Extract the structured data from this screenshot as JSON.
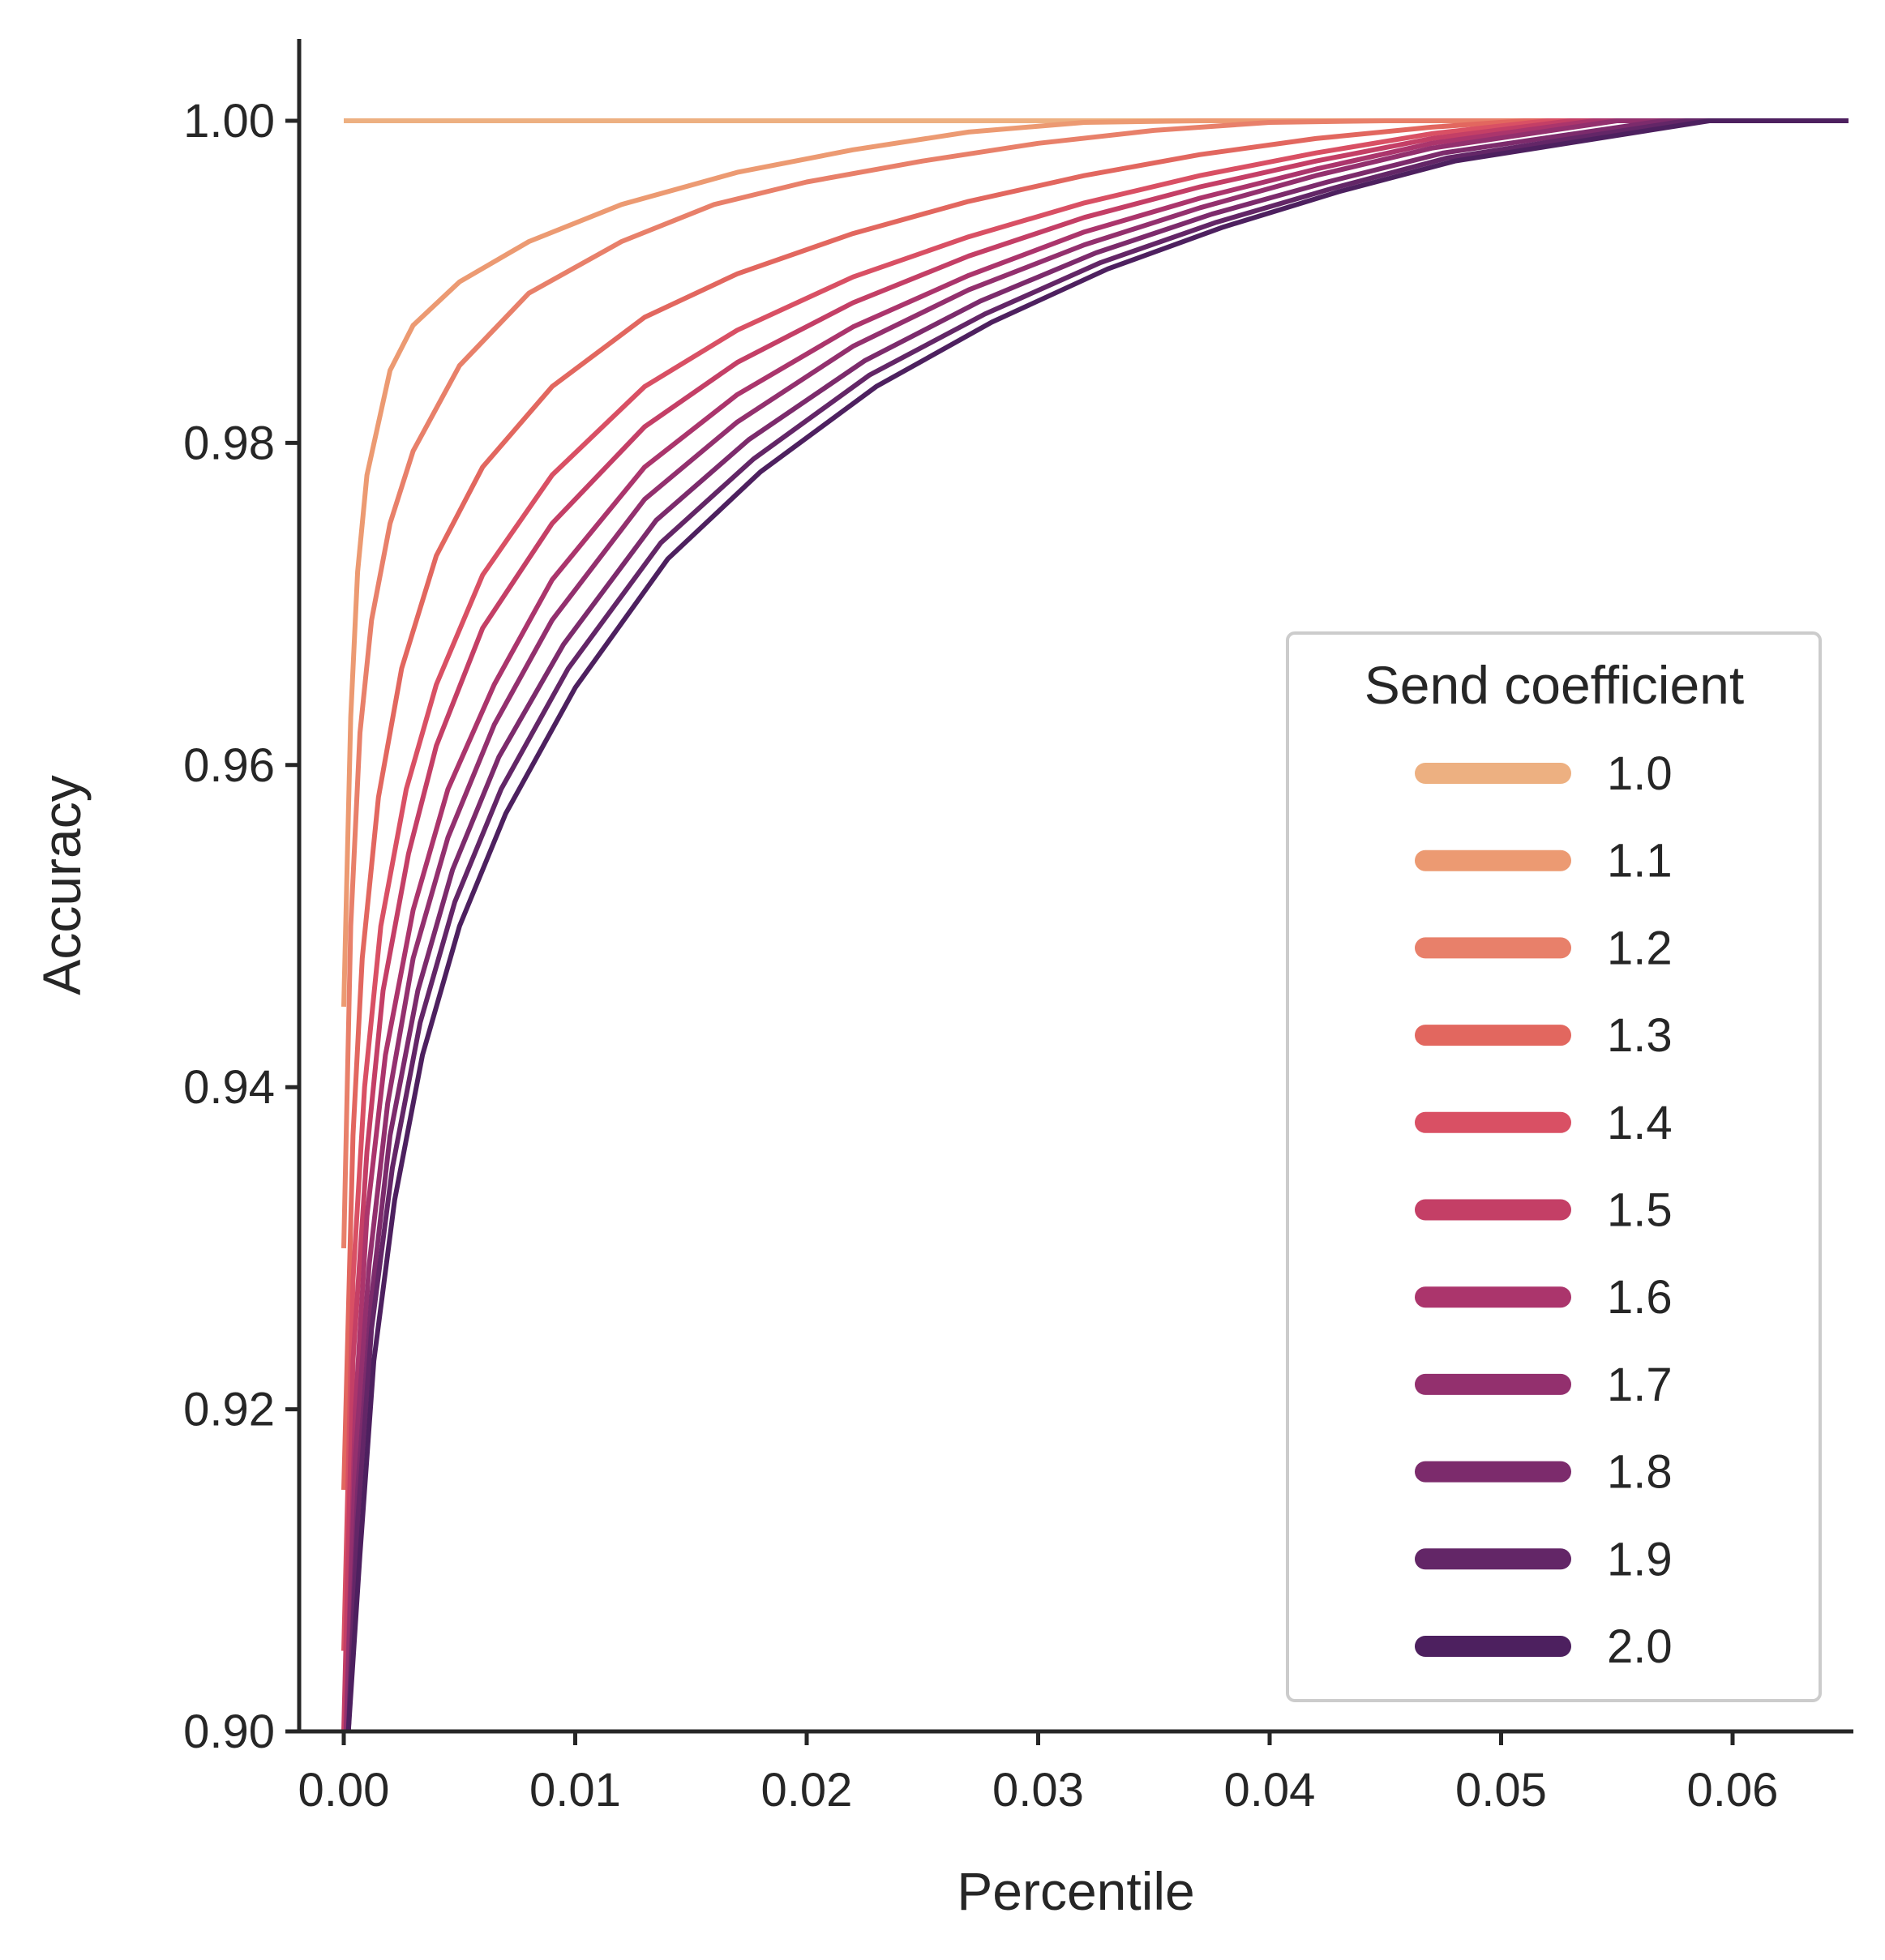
{
  "chart_data": {
    "type": "line",
    "xlabel": "Percentile",
    "ylabel": "Accuracy",
    "xlim": [
      -0.0019,
      0.065
    ],
    "ylim": [
      0.9,
      1.005
    ],
    "x_ticks": [
      "0.00",
      "0.01",
      "0.02",
      "0.03",
      "0.04",
      "0.05",
      "0.06"
    ],
    "y_ticks": [
      "0.90",
      "0.92",
      "0.94",
      "0.96",
      "0.98",
      "1.00"
    ],
    "grid": false,
    "legend": {
      "title": "Send coefficient",
      "placement": "lower-right"
    },
    "series": [
      {
        "name": "1.0",
        "color": "#edb081",
        "x": [
          0,
          0.065
        ],
        "y": [
          1.0,
          1.0
        ]
      },
      {
        "name": "1.1",
        "color": "#ec9a72",
        "x": [
          0,
          0.0003,
          0.0006,
          0.001,
          0.002,
          0.003,
          0.005,
          0.008,
          0.012,
          0.017,
          0.022,
          0.027,
          0.032,
          0.037
        ],
        "y": [
          0.945,
          0.963,
          0.972,
          0.978,
          0.9845,
          0.9873,
          0.99,
          0.9925,
          0.9948,
          0.9968,
          0.9982,
          0.9993,
          0.9999,
          1.0
        ]
      },
      {
        "name": "1.2",
        "color": "#e8806a",
        "x": [
          0,
          0.0003,
          0.0007,
          0.0012,
          0.002,
          0.003,
          0.005,
          0.008,
          0.012,
          0.016,
          0.02,
          0.025,
          0.03,
          0.035,
          0.04,
          0.045
        ],
        "y": [
          0.93,
          0.95,
          0.962,
          0.969,
          0.975,
          0.9795,
          0.9848,
          0.9893,
          0.9925,
          0.9948,
          0.9962,
          0.9975,
          0.9986,
          0.9994,
          0.9999,
          1.0
        ]
      },
      {
        "name": "1.3",
        "color": "#e2675f",
        "x": [
          0,
          0.0004,
          0.0008,
          0.0015,
          0.0025,
          0.004,
          0.006,
          0.009,
          0.013,
          0.017,
          0.022,
          0.027,
          0.032,
          0.037,
          0.042,
          0.047,
          0.051
        ],
        "y": [
          0.915,
          0.937,
          0.948,
          0.958,
          0.966,
          0.973,
          0.9785,
          0.9835,
          0.9878,
          0.9905,
          0.993,
          0.995,
          0.9966,
          0.9979,
          0.9989,
          0.9996,
          1.0
        ]
      },
      {
        "name": "1.4",
        "color": "#d95064",
        "x": [
          0,
          0.0004,
          0.0009,
          0.0016,
          0.0027,
          0.004,
          0.006,
          0.009,
          0.013,
          0.017,
          0.022,
          0.027,
          0.032,
          0.037,
          0.042,
          0.047,
          0.052
        ],
        "y": [
          0.905,
          0.928,
          0.94,
          0.95,
          0.9585,
          0.965,
          0.9718,
          0.978,
          0.9835,
          0.987,
          0.9903,
          0.9928,
          0.9949,
          0.9966,
          0.998,
          0.9992,
          1.0
        ]
      },
      {
        "name": "1.5",
        "color": "#c43f66",
        "x": [
          0,
          0.0004,
          0.001,
          0.0017,
          0.0028,
          0.004,
          0.006,
          0.009,
          0.013,
          0.017,
          0.022,
          0.027,
          0.032,
          0.037,
          0.042,
          0.047,
          0.053
        ],
        "y": [
          0.9,
          0.923,
          0.936,
          0.946,
          0.9545,
          0.9612,
          0.9685,
          0.975,
          0.981,
          0.985,
          0.9887,
          0.9916,
          0.994,
          0.9959,
          0.9975,
          0.9989,
          1.0
        ]
      },
      {
        "name": "1.6",
        "color": "#ab356c",
        "x": [
          0.0001,
          0.0005,
          0.001,
          0.0018,
          0.003,
          0.0045,
          0.0065,
          0.009,
          0.013,
          0.017,
          0.022,
          0.027,
          0.032,
          0.037,
          0.042,
          0.047,
          0.054
        ],
        "y": [
          0.9,
          0.92,
          0.932,
          0.942,
          0.951,
          0.9585,
          0.965,
          0.9715,
          0.9785,
          0.983,
          0.9872,
          0.9904,
          0.9931,
          0.9952,
          0.997,
          0.9986,
          1.0
        ]
      },
      {
        "name": "1.7",
        "color": "#93306e",
        "x": [
          0.0001,
          0.0005,
          0.0011,
          0.0019,
          0.003,
          0.0045,
          0.0065,
          0.009,
          0.013,
          0.017,
          0.022,
          0.027,
          0.032,
          0.037,
          0.042,
          0.047,
          0.055
        ],
        "y": [
          0.9,
          0.917,
          0.929,
          0.939,
          0.948,
          0.9555,
          0.9625,
          0.969,
          0.9765,
          0.9813,
          0.986,
          0.9895,
          0.9923,
          0.9946,
          0.9966,
          0.9983,
          1.0
        ]
      },
      {
        "name": "1.8",
        "color": "#7c2b6c",
        "x": [
          0.0002,
          0.0006,
          0.0012,
          0.002,
          0.0032,
          0.0047,
          0.0067,
          0.0095,
          0.0135,
          0.0175,
          0.0225,
          0.0275,
          0.0325,
          0.0375,
          0.0425,
          0.0475,
          0.057
        ],
        "y": [
          0.9,
          0.915,
          0.927,
          0.937,
          0.946,
          0.9535,
          0.9605,
          0.9675,
          0.9752,
          0.9802,
          0.9851,
          0.9888,
          0.9918,
          0.9942,
          0.9962,
          0.998,
          1.0
        ]
      },
      {
        "name": "1.9",
        "color": "#632667",
        "x": [
          0.0002,
          0.0006,
          0.0012,
          0.0021,
          0.0033,
          0.0048,
          0.0068,
          0.0097,
          0.0137,
          0.0177,
          0.0227,
          0.0277,
          0.0327,
          0.0377,
          0.0427,
          0.0477,
          0.058
        ],
        "y": [
          0.9,
          0.913,
          0.925,
          0.935,
          0.944,
          0.9515,
          0.9585,
          0.966,
          0.9738,
          0.979,
          0.9842,
          0.988,
          0.9912,
          0.9937,
          0.9958,
          0.9977,
          1.0
        ]
      },
      {
        "name": "2.0",
        "color": "#4d205f",
        "x": [
          0.0002,
          0.0007,
          0.0013,
          0.0022,
          0.0034,
          0.005,
          0.007,
          0.01,
          0.014,
          0.018,
          0.023,
          0.028,
          0.033,
          0.038,
          0.043,
          0.048,
          0.059
        ],
        "y": [
          0.9,
          0.911,
          0.923,
          0.933,
          0.942,
          0.95,
          0.957,
          0.9648,
          0.9728,
          0.9782,
          0.9835,
          0.9875,
          0.9908,
          0.9934,
          0.9956,
          0.9975,
          1.0
        ]
      }
    ]
  }
}
